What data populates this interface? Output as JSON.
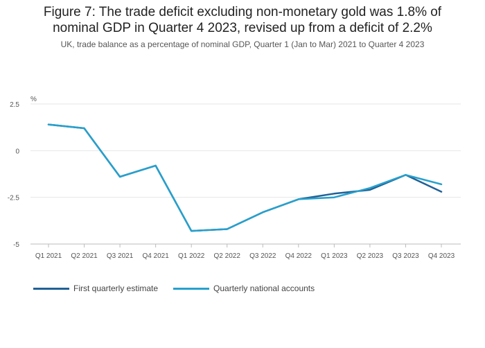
{
  "header": {
    "title_line1": "Figure 7: The trade deficit excluding non-monetary gold was 1.8% of",
    "title_line2": "nominal GDP in Quarter 4 2023, revised up from a deficit of 2.2%",
    "subtitle": "UK, trade balance as a percentage of nominal GDP, Quarter 1 (Jan to Mar) 2021 to Quarter 4 2023"
  },
  "chart_data": {
    "type": "line",
    "title": "Figure 7: The trade deficit excluding non-monetary gold was 1.8% of nominal GDP in Quarter 4 2023, revised up from a deficit of 2.2%",
    "subtitle": "UK, trade balance as a percentage of nominal GDP, Quarter 1 (Jan to Mar) 2021 to Quarter 4 2023",
    "ylabel": "%",
    "xlabel": "",
    "categories": [
      "Q1 2021",
      "Q2 2021",
      "Q3 2021",
      "Q4 2021",
      "Q1 2022",
      "Q2 2022",
      "Q3 2022",
      "Q4 2022",
      "Q1 2023",
      "Q2 2023",
      "Q3 2023",
      "Q4 2023"
    ],
    "ylim": [
      -5,
      2.5
    ],
    "yticks": [
      2.5,
      0,
      -2.5,
      -5
    ],
    "ytick_labels": [
      "2.5",
      "0",
      "-2.5",
      "-5"
    ],
    "grid": "horizontal",
    "legend_position": "bottom-left",
    "series": [
      {
        "name": "First quarterly estimate",
        "color": "#206095",
        "values": [
          1.4,
          1.2,
          -1.4,
          -0.8,
          -4.3,
          -4.2,
          -3.3,
          -2.6,
          -2.3,
          -2.1,
          -1.3,
          -2.2
        ]
      },
      {
        "name": "Quarterly national accounts",
        "color": "#27a0cc",
        "values": [
          1.4,
          1.2,
          -1.4,
          -0.8,
          -4.3,
          -4.2,
          -3.3,
          -2.6,
          -2.5,
          -2.0,
          -1.3,
          -1.8
        ]
      }
    ]
  }
}
